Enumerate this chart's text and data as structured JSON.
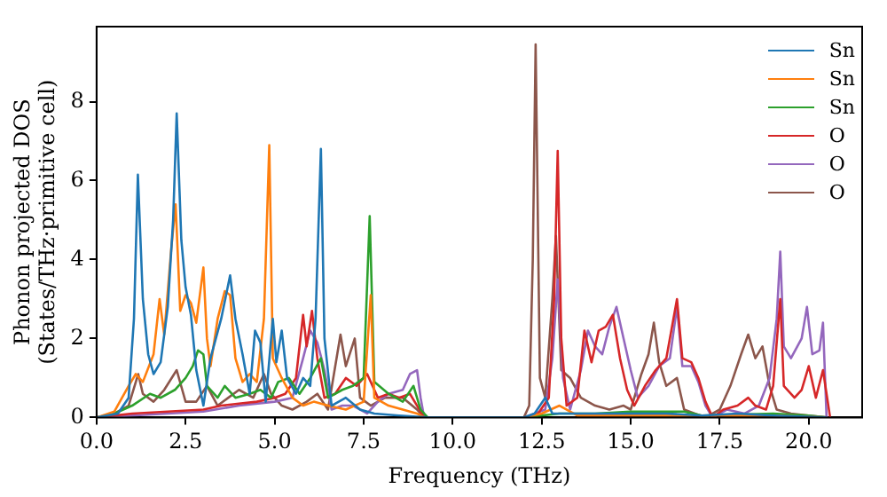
{
  "chart_data": {
    "type": "line",
    "xlabel": "Frequency (THz)",
    "ylabel": "Phonon projected DOS\n(States/THz·primitive cell)",
    "xlim": [
      0,
      21.5
    ],
    "xticks": [
      {
        "value": 0,
        "label": "0.0"
      },
      {
        "value": 2.5,
        "label": "2.5"
      },
      {
        "value": 5,
        "label": "5.0"
      },
      {
        "value": 7.5,
        "label": "7.5"
      },
      {
        "value": 10,
        "label": "10.0"
      },
      {
        "value": 12.5,
        "label": "12.5"
      },
      {
        "value": 15,
        "label": "15.0"
      },
      {
        "value": 17.5,
        "label": "17.5"
      },
      {
        "value": 20,
        "label": "20.0"
      }
    ],
    "ylim": [
      0,
      9.9
    ],
    "yticks": [
      0,
      2,
      4,
      6,
      8
    ],
    "grid": false,
    "legend": "top right",
    "marker": "none",
    "line_style": "solid",
    "series": [
      {
        "name": "Sn",
        "color": "#1f77b4",
        "x": [
          0,
          0.6,
          0.9,
          1.05,
          1.16,
          1.3,
          1.45,
          1.6,
          1.8,
          2.0,
          2.15,
          2.25,
          2.38,
          2.5,
          2.65,
          2.8,
          3.0,
          3.2,
          3.5,
          3.75,
          3.9,
          4.1,
          4.3,
          4.45,
          4.6,
          4.75,
          4.95,
          5.05,
          5.2,
          5.35,
          5.6,
          5.8,
          6.0,
          6.15,
          6.3,
          6.4,
          6.6,
          7.0,
          7.4,
          7.8,
          8.5,
          9.3,
          12.0,
          12.3,
          12.6,
          12.8,
          13.5,
          15,
          16,
          17,
          18,
          19,
          20.5
        ],
        "values": [
          0,
          0.1,
          0.5,
          2.5,
          6.15,
          3,
          1.6,
          1.1,
          1.4,
          2.8,
          5,
          7.7,
          4.5,
          3.3,
          2.6,
          1.2,
          0.3,
          1.5,
          2.5,
          3.6,
          2.5,
          1.6,
          0.6,
          2.2,
          1.9,
          0.4,
          2.5,
          1.4,
          2.2,
          1.0,
          0.6,
          1.0,
          0.8,
          2.5,
          6.8,
          2.0,
          0.3,
          0.5,
          0.2,
          0.1,
          0.05,
          0,
          0,
          0.1,
          0.5,
          0.1,
          0.1,
          0.1,
          0.1,
          0.05,
          0.1,
          0.05,
          0
        ]
      },
      {
        "name": "Sn",
        "color": "#ff7f0e",
        "x": [
          0,
          0.5,
          0.9,
          1.1,
          1.3,
          1.6,
          1.77,
          1.9,
          2.1,
          2.22,
          2.35,
          2.5,
          2.65,
          2.8,
          3.0,
          3.1,
          3.2,
          3.4,
          3.6,
          3.75,
          3.9,
          4.1,
          4.3,
          4.5,
          4.7,
          4.85,
          4.95,
          5.2,
          5.5,
          5.8,
          6.1,
          6.5,
          7.0,
          7.5,
          7.7,
          7.8,
          8.2,
          8.6,
          9.0,
          9.2,
          12,
          12.5,
          13,
          13.5,
          16,
          19,
          20.5
        ],
        "values": [
          0,
          0.15,
          0.8,
          1.1,
          0.9,
          1.6,
          3.0,
          2.1,
          4.3,
          5.4,
          2.7,
          3.1,
          2.9,
          2.4,
          3.8,
          2.0,
          1.3,
          2.5,
          3.2,
          3.1,
          1.5,
          0.9,
          1.1,
          0.9,
          2.5,
          6.9,
          1.5,
          1.0,
          0.5,
          0.3,
          0.4,
          0.3,
          0.2,
          0.4,
          3.1,
          0.5,
          0.3,
          0.2,
          0.1,
          0,
          0,
          0.1,
          0.3,
          0.05,
          0.05,
          0.05,
          0
        ]
      },
      {
        "name": "Sn",
        "color": "#2ca02c",
        "x": [
          0,
          0.5,
          1.0,
          1.5,
          1.8,
          2.2,
          2.5,
          2.7,
          2.85,
          3.0,
          3.1,
          3.4,
          3.6,
          3.9,
          4.3,
          4.6,
          4.9,
          5.1,
          5.4,
          5.7,
          6.0,
          6.3,
          6.5,
          6.9,
          7.2,
          7.5,
          7.67,
          7.8,
          8.2,
          8.6,
          8.9,
          9.1,
          9.3,
          12,
          13,
          14,
          15,
          16.5,
          17,
          19,
          20,
          20.5
        ],
        "values": [
          0,
          0.1,
          0.3,
          0.6,
          0.5,
          0.7,
          1.0,
          1.3,
          1.7,
          1.6,
          0.8,
          0.5,
          0.8,
          0.5,
          0.6,
          0.7,
          0.5,
          0.9,
          1.0,
          0.6,
          1.0,
          1.5,
          0.5,
          0.7,
          0.8,
          1.0,
          5.1,
          0.9,
          0.6,
          0.4,
          0.8,
          0.2,
          0,
          0,
          0.1,
          0.1,
          0.15,
          0.15,
          0.05,
          0.1,
          0.05,
          0
        ]
      },
      {
        "name": "O",
        "color": "#d62728",
        "x": [
          0,
          1,
          2,
          3,
          3.5,
          4,
          4.5,
          5,
          5.3,
          5.6,
          5.8,
          5.9,
          6.05,
          6.2,
          6.4,
          6.7,
          7.0,
          7.3,
          7.6,
          7.9,
          8.2,
          8.5,
          8.8,
          9.0,
          9.2,
          12.0,
          12.4,
          12.7,
          12.85,
          12.95,
          13.05,
          13.2,
          13.5,
          13.7,
          13.9,
          14.1,
          14.3,
          14.5,
          14.7,
          14.9,
          15.1,
          15.4,
          15.7,
          16.0,
          16.3,
          16.45,
          16.7,
          16.9,
          17.1,
          17.3,
          17.6,
          18.0,
          18.3,
          18.5,
          18.8,
          19.0,
          19.2,
          19.3,
          19.6,
          19.8,
          20.0,
          20.2,
          20.4,
          20.6
        ],
        "values": [
          0,
          0.1,
          0.15,
          0.2,
          0.3,
          0.35,
          0.4,
          0.5,
          0.6,
          1.0,
          2.6,
          1.8,
          2.7,
          1.5,
          0.5,
          0.6,
          1.0,
          0.8,
          1.1,
          0.5,
          0.6,
          0.5,
          0.6,
          0.3,
          0,
          0,
          0.1,
          0.5,
          3,
          6.75,
          2,
          0.3,
          0.5,
          2.2,
          1.4,
          2.2,
          2.3,
          2.6,
          1.5,
          0.7,
          0.3,
          0.8,
          1.2,
          1.5,
          3.0,
          1.5,
          1.4,
          1.0,
          0.4,
          0,
          0.2,
          0.3,
          0.5,
          0.3,
          0.2,
          0.8,
          3.0,
          0.8,
          0.5,
          0.7,
          1.3,
          0.5,
          1.2,
          0
        ]
      },
      {
        "name": "O",
        "color": "#9467bd",
        "x": [
          0,
          1,
          2,
          3,
          4,
          5,
          5.5,
          5.8,
          6.0,
          6.2,
          6.4,
          6.6,
          6.9,
          7.2,
          7.6,
          7.9,
          8.2,
          8.6,
          8.8,
          9.0,
          9.1,
          9.2,
          12,
          12.6,
          12.8,
          12.95,
          13.1,
          13.3,
          13.6,
          13.8,
          14.0,
          14.2,
          14.4,
          14.6,
          14.8,
          15.0,
          15.2,
          15.5,
          15.8,
          16.1,
          16.3,
          16.45,
          16.7,
          16.9,
          17.1,
          17.3,
          17.7,
          18.2,
          18.6,
          18.9,
          19.1,
          19.2,
          19.3,
          19.5,
          19.8,
          19.95,
          20.1,
          20.3,
          20.4,
          20.5
        ],
        "values": [
          0,
          0.05,
          0.1,
          0.15,
          0.3,
          0.4,
          0.5,
          1.5,
          2.2,
          1.9,
          1.2,
          0.2,
          0.3,
          0.3,
          0.1,
          0.4,
          0.6,
          0.7,
          1.1,
          1.2,
          0.5,
          0,
          0,
          0.2,
          1.5,
          3.5,
          1.0,
          0.2,
          1.2,
          2.2,
          1.8,
          1.6,
          2.3,
          2.8,
          2.0,
          1.2,
          0.5,
          0.8,
          1.3,
          1.5,
          2.8,
          1.3,
          1.3,
          0.9,
          0.3,
          0,
          0.2,
          0.1,
          0.3,
          1.0,
          2.5,
          4.2,
          1.8,
          1.5,
          2.0,
          2.8,
          1.6,
          1.7,
          2.4,
          0
        ]
      },
      {
        "name": "O",
        "color": "#8c564b",
        "x": [
          0,
          0.5,
          0.9,
          1.17,
          1.3,
          1.6,
          1.9,
          2.25,
          2.5,
          2.8,
          3.1,
          3.4,
          3.7,
          4.0,
          4.4,
          4.7,
          4.9,
          5.2,
          5.5,
          5.9,
          6.2,
          6.5,
          6.85,
          7.0,
          7.25,
          7.4,
          7.7,
          8.1,
          8.6,
          9.0,
          9.2,
          12.0,
          12.15,
          12.25,
          12.33,
          12.45,
          12.6,
          12.8,
          12.9,
          13.05,
          13.3,
          13.6,
          14.0,
          14.4,
          14.8,
          15.0,
          15.3,
          15.5,
          15.65,
          15.8,
          16.0,
          16.3,
          16.5,
          16.8,
          17.1,
          17.5,
          17.8,
          18.1,
          18.3,
          18.5,
          18.7,
          18.9,
          19.1,
          19.5,
          20,
          20.5
        ],
        "values": [
          0,
          0.1,
          0.3,
          1.1,
          0.6,
          0.4,
          0.7,
          1.2,
          0.4,
          0.4,
          0.8,
          0.3,
          0.5,
          0.7,
          0.5,
          1.1,
          0.6,
          0.3,
          0.2,
          0.4,
          0.6,
          0.2,
          2.1,
          1.3,
          2.0,
          0.5,
          0.3,
          0.5,
          0.5,
          0.2,
          0,
          0,
          0.3,
          4.0,
          9.45,
          1.0,
          0.5,
          3.0,
          4.6,
          1.2,
          1.0,
          0.5,
          0.3,
          0.2,
          0.3,
          0.2,
          1.1,
          1.6,
          2.4,
          1.4,
          0.8,
          1.0,
          0.2,
          0.1,
          0,
          0.2,
          0.8,
          1.6,
          2.1,
          1.5,
          1.8,
          0.8,
          0.2,
          0.1,
          0.05,
          0
        ]
      }
    ]
  }
}
